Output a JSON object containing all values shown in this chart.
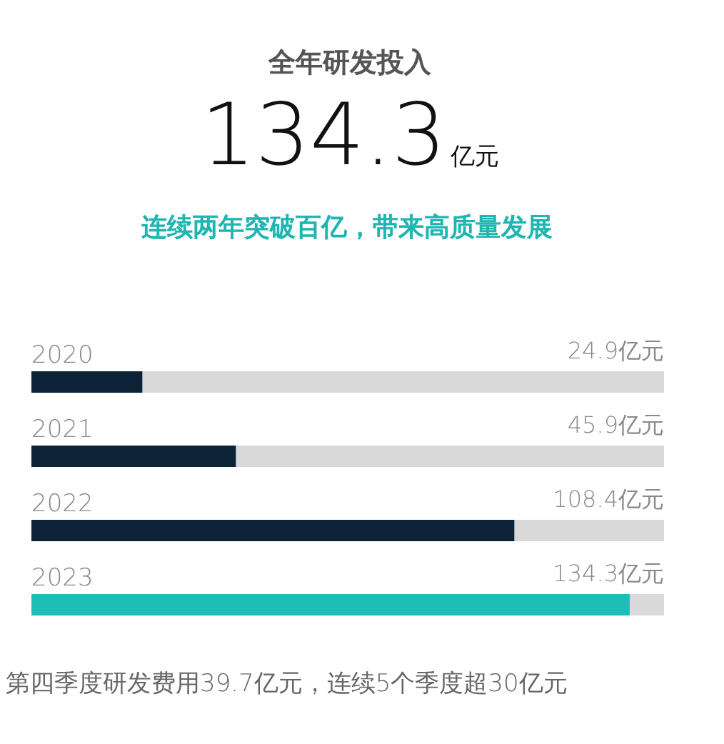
{
  "chart_data": {
    "type": "bar",
    "orientation": "horizontal",
    "title": "全年研发投入",
    "subtitle": "连续两年突破百亿，带来高质量发展",
    "annotations": [
      "134.3亿元",
      "第四季度研发费用39.7亿元，连续5个季度超30亿元"
    ],
    "categories": [
      "2020",
      "2021",
      "2022",
      "2023"
    ],
    "values": [
      24.9,
      45.9,
      108.4,
      134.3
    ],
    "value_labels": [
      "24.9亿元",
      "45.9亿元",
      "108.4亿元",
      "134.3亿元"
    ],
    "colors": [
      "#0b2237",
      "#0b2237",
      "#0b2237",
      "#1fbdb8"
    ],
    "xlim": [
      0,
      142
    ]
  }
}
